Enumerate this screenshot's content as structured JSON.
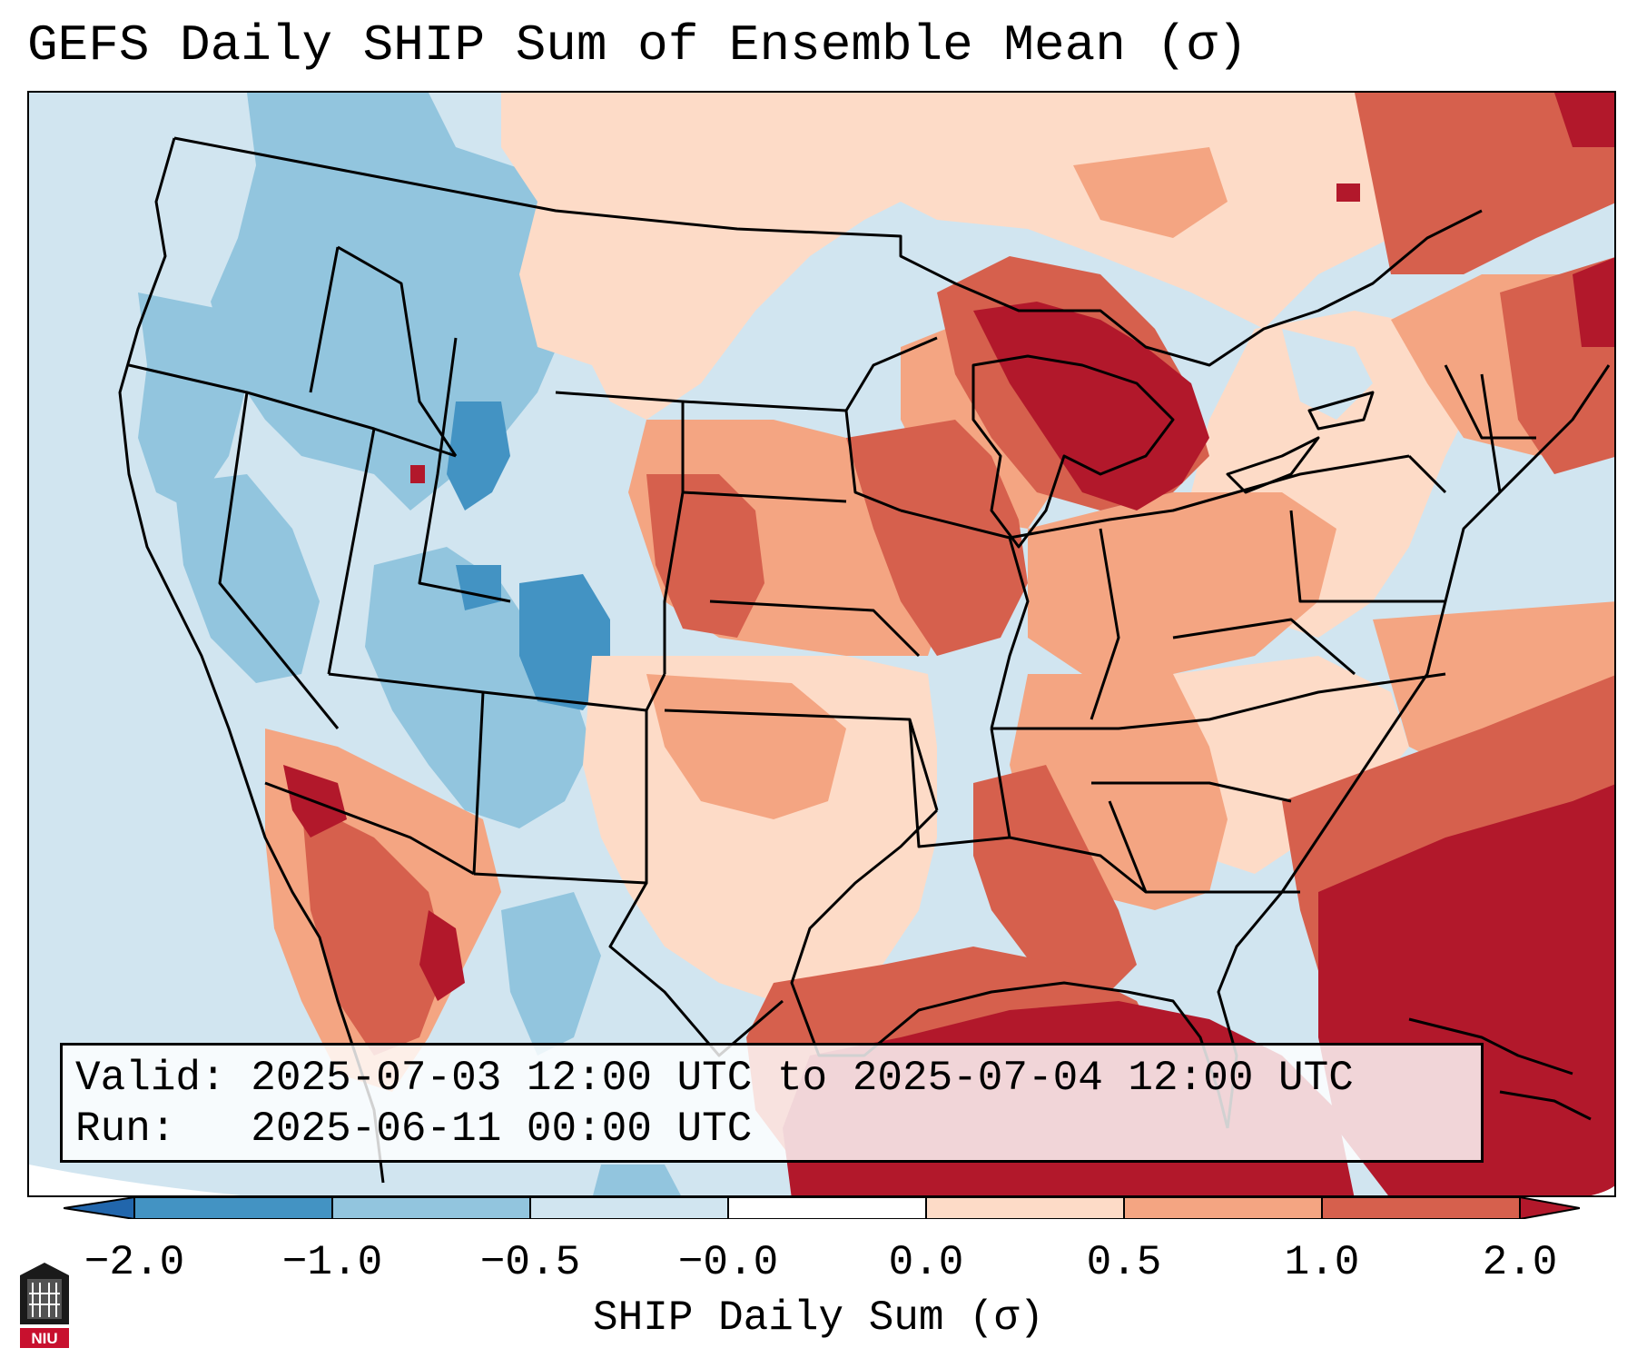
{
  "title": "GEFS Daily SHIP Sum of Ensemble Mean (σ)",
  "info": {
    "valid_label": "Valid:",
    "valid_value": "2025-07-03 12:00 UTC to 2025-07-04 12:00 UTC",
    "run_label": "Run:",
    "run_value": "2025-06-11 00:00 UTC"
  },
  "colorbar": {
    "label": "SHIP Daily Sum (σ)",
    "ticks": [
      "−2.0",
      "−1.0",
      "−0.5",
      "−0.0",
      "0.0",
      "0.5",
      "1.0",
      "2.0"
    ],
    "colors": [
      "#2166ac",
      "#4393c3",
      "#92c5de",
      "#d1e5f0",
      "#ffffff",
      "#fddbc7",
      "#f4a582",
      "#d6604d",
      "#b2182b"
    ],
    "extend": "both"
  },
  "legend_colors": {
    "strong_negative": "#4393c3",
    "negative": "#92c5de",
    "weak_negative": "#d1e5f0",
    "weak_positive": "#fddbc7",
    "positive": "#f4a582",
    "strong_positive": "#d6604d",
    "extreme_positive": "#b2182b"
  },
  "logo": {
    "text": "NIU"
  }
}
